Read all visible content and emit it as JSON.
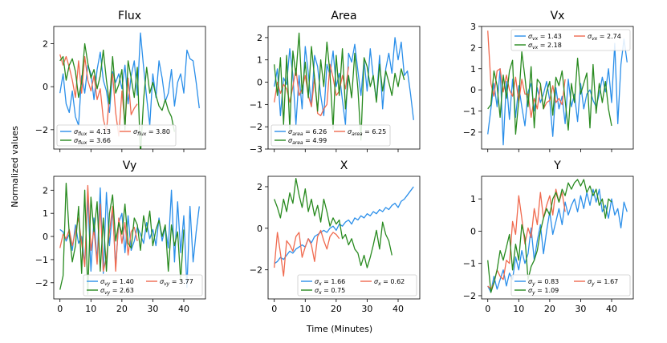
{
  "figure": {
    "x_label": "Time (Minutes)",
    "y_label": "Normalized values"
  },
  "colors": {
    "blue": "#2b8fea",
    "red": "#f06a4f",
    "green": "#288a1f"
  },
  "chart_data": [
    {
      "type": "line",
      "title": "Flux",
      "xlim": [
        -2,
        47
      ],
      "ylim": [
        -2.9,
        2.8
      ],
      "xticks": [
        0,
        10,
        20,
        30,
        40
      ],
      "xticklabels": [],
      "yticks": [
        -2,
        0,
        2
      ],
      "yticklabels": [
        "−2",
        "0",
        "2"
      ],
      "legend_ncol": 2,
      "legend_loc": "lower-left",
      "series": [
        {
          "name": "σflux = 4.13",
          "sym": "flux",
          "val": "4.13",
          "color": "blue",
          "step": 1,
          "values": [
            -0.3,
            0.6,
            -0.8,
            -1.2,
            -0.2,
            -1.4,
            -1.8,
            0.5,
            -0.3,
            1.0,
            0.6,
            -0.6,
            0.8,
            1.6,
            0.3,
            -0.2,
            -1.2,
            0.7,
            0.2,
            0.6,
            -0.1,
            1.0,
            -0.8,
            0.5,
            1.2,
            -0.4,
            2.5,
            0.9,
            -0.5,
            -1.8,
            0.6,
            -0.5,
            1.2,
            0.4,
            -0.7,
            -0.3,
            0.8,
            -0.9,
            0.2,
            0.6,
            -0.3,
            1.7,
            1.3,
            1.2,
            0.2,
            -1.0
          ]
        },
        {
          "name": "σflux = 3.80",
          "sym": "flux",
          "val": "3.80",
          "color": "red",
          "step": 1,
          "values": [
            1.5,
            1.0,
            1.4,
            0.9,
            0.3,
            -0.5,
            1.2,
            -0.3,
            1.4,
            0.3,
            -0.2,
            0.5,
            -0.6,
            -0.1,
            -1.5,
            -2.1,
            -0.4,
            0.6,
            -1.2,
            -2.3,
            -0.2,
            -1.8,
            0.4,
            -1.3,
            -1.0,
            -0.8
          ]
        },
        {
          "name": "σflux = 3.66",
          "sym": "flux",
          "val": "3.66",
          "color": "green",
          "step": 1,
          "values": [
            1.2,
            1.4,
            0.3,
            1.0,
            1.3,
            0.7,
            -0.5,
            0.2,
            2.0,
            1.1,
            0.4,
            0.8,
            -0.1,
            0.5,
            1.7,
            0.3,
            -0.8,
            1.4,
            -0.3,
            0.1,
            0.8,
            -2.0,
            1.2,
            0.4,
            -0.5,
            0.9,
            -3.2,
            -0.6,
            0.9,
            -0.3,
            0.2,
            -0.4,
            -0.9,
            -1.1,
            -0.6,
            -1.1,
            -1.4,
            -2.1
          ]
        }
      ]
    },
    {
      "type": "line",
      "title": "Area",
      "xlim": [
        -2,
        47
      ],
      "ylim": [
        -3,
        2.5
      ],
      "xticks": [
        0,
        10,
        20,
        30,
        40
      ],
      "xticklabels": [],
      "yticks": [
        -3,
        -2,
        -1,
        0,
        1,
        2
      ],
      "yticklabels": [
        "−3",
        "−2",
        "−1",
        "0",
        "1",
        "2"
      ],
      "legend_ncol": 2,
      "legend_loc": "lower-left",
      "series": [
        {
          "name": "σarea = 6.26",
          "sym": "area",
          "val": "6.26",
          "color": "blue",
          "step": 1,
          "values": [
            -0.2,
            0.6,
            -1.5,
            0.2,
            -0.1,
            1.5,
            0.3,
            -1.9,
            0.3,
            -1.2,
            1.6,
            0.4,
            -1.1,
            1.2,
            0.7,
            -0.6,
            -1.5,
            0.8,
            0.3,
            1.4,
            -0.2,
            0.4,
            -0.8,
            -1.9,
            1.3,
            0.9,
            1.7,
            0.5,
            -0.6,
            1.0,
            -0.4,
            1.5,
            0.2,
            -0.8,
            1.2,
            -1.2,
            0.6,
            1.3,
            0.4,
            2.0,
            1.0,
            1.8,
            0.3,
            0.5,
            -0.5,
            -1.7
          ]
        },
        {
          "name": "σarea = 6.25",
          "sym": "area",
          "val": "6.25",
          "color": "red",
          "step": 1,
          "values": [
            -0.9,
            0.0,
            -0.5,
            -0.1,
            -0.3,
            -0.9,
            -0.2,
            0.6,
            -0.6,
            -0.3,
            0.3,
            -0.6,
            -1.1,
            0.2,
            -1.4,
            -1.5,
            -1.2,
            -1.0,
            0.8,
            0.2,
            -0.6,
            -0.4,
            0.3,
            -0.3,
            0.7
          ]
        },
        {
          "name": "σarea = 4.99",
          "sym": "area",
          "val": "4.99",
          "color": "green",
          "step": 1,
          "values": [
            0.8,
            -0.6,
            1.1,
            -1.9,
            1.2,
            -2.1,
            1.4,
            0.3,
            2.2,
            -0.5,
            0.9,
            -0.7,
            1.6,
            0.2,
            -1.3,
            1.0,
            -0.2,
            1.8,
            0.4,
            -2.1,
            1.2,
            -0.6,
            1.5,
            -1.2,
            0.3,
            -0.7,
            1.3,
            -0.3,
            -2.6,
            1.1,
            0.7,
            -0.2,
            0.3,
            -0.9,
            0.8,
            -0.4,
            0.5,
            0.0,
            -0.6,
            0.4,
            -0.2,
            0.6,
            0.1
          ]
        }
      ]
    },
    {
      "type": "line",
      "title": "Vx",
      "xlim": [
        -2,
        47
      ],
      "ylim": [
        -2.8,
        3.0
      ],
      "xticks": [
        0,
        10,
        20,
        30,
        40
      ],
      "xticklabels": [],
      "yticks": [
        -2,
        -1,
        0,
        1,
        2,
        3
      ],
      "yticklabels": [
        "−2",
        "−1",
        "0",
        "1",
        "2",
        "3"
      ],
      "legend_ncol": 2,
      "legend_loc": "upper-right",
      "series": [
        {
          "name": "σvx = 1.43",
          "sym": "vx",
          "val": "1.43",
          "color": "blue",
          "step": 1,
          "values": [
            -2.1,
            -0.9,
            0.3,
            -0.8,
            1.0,
            -2.6,
            0.4,
            -1.4,
            0.5,
            -1.3,
            0.2,
            -0.8,
            -1.7,
            -0.1,
            0.3,
            -1.0,
            0.1,
            -0.6,
            -0.2,
            0.4,
            -0.5,
            -2.2,
            0.1,
            -0.9,
            -0.3,
            -1.6,
            0.5,
            -0.8,
            -0.2,
            -1.5,
            0.3,
            -0.9,
            -0.2,
            0.0,
            -0.5,
            -0.8,
            -0.2,
            0.6,
            -0.1,
            1.0,
            -0.6,
            2.2,
            -1.6,
            1.2,
            2.4,
            1.3
          ]
        },
        {
          "name": "σvx = 2.74",
          "sym": "vx",
          "val": "2.74",
          "color": "red",
          "step": 1,
          "values": [
            2.8,
            0.3,
            -0.3,
            0.9,
            1.0,
            -0.1,
            0.7,
            0.0,
            -0.3,
            0.6,
            -0.6,
            0.5,
            -0.2,
            -0.2,
            -1.3,
            -0.4,
            -0.9,
            0.2,
            -0.9,
            -0.6,
            -0.5,
            0.2,
            -0.6,
            -0.4,
            -0.7,
            0.5
          ]
        },
        {
          "name": "σvx = 2.18",
          "sym": "vx",
          "val": "2.18",
          "color": "green",
          "step": 1,
          "values": [
            -0.9,
            -0.7,
            0.9,
            0.2,
            -1.3,
            0.7,
            -0.4,
            0.9,
            1.4,
            -2.1,
            -0.5,
            1.8,
            0.6,
            -0.8,
            1.1,
            -1.8,
            0.5,
            0.3,
            -0.9,
            -0.1,
            0.4,
            -1.2,
            0.6,
            0.2,
            0.9,
            -0.5,
            -1.9,
            0.3,
            -0.6,
            1.5,
            -0.2,
            0.3,
            0.8,
            -1.8,
            1.2,
            -1.1,
            0.3,
            -0.6,
            0.4,
            -0.9,
            -1.7
          ]
        }
      ]
    },
    {
      "type": "line",
      "title": "Vy",
      "xlim": [
        -2,
        47
      ],
      "ylim": [
        -2.7,
        2.6
      ],
      "xticks": [
        0,
        10,
        20,
        30,
        40
      ],
      "xticklabels": [
        "0",
        "10",
        "20",
        "30",
        "40"
      ],
      "yticks": [
        -2,
        -1,
        0,
        1,
        2
      ],
      "yticklabels": [
        "−2",
        "−1",
        "0",
        "1",
        "2"
      ],
      "legend_ncol": 2,
      "legend_loc": "lower-right",
      "series": [
        {
          "name": "σvy = 1.40",
          "sym": "vy",
          "val": "1.40",
          "color": "blue",
          "step": 1,
          "values": [
            0.3,
            0.2,
            -0.2,
            0.1,
            -0.6,
            0.5,
            -0.3,
            0.0,
            -1.2,
            1.7,
            -1.5,
            0.8,
            -1.1,
            2.1,
            -1.6,
            1.9,
            -0.4,
            1.2,
            -1.3,
            0.6,
            1.0,
            -0.7,
            0.9,
            -0.6,
            -0.2,
            0.4,
            0.1,
            -0.3,
            0.6,
            -0.1,
            0.3,
            -0.4,
            0.8,
            -0.2,
            0.4,
            -0.5,
            2.0,
            -1.1,
            1.5,
            -0.7,
            0.9,
            -2.2,
            1.3,
            -1.1,
            0.2,
            1.3
          ]
        },
        {
          "name": "σvy = 3.77",
          "sym": "vy",
          "val": "3.77",
          "color": "red",
          "step": 1,
          "values": [
            -0.5,
            0.1,
            -0.1,
            0.3,
            -0.4,
            0.2,
            0.8,
            -0.3,
            -1.3,
            2.2,
            -0.6,
            0.3,
            -1.2,
            1.4,
            -1.5,
            -0.9,
            0.2,
            1.3,
            -1.5,
            0.8,
            -0.3,
            0.6,
            -0.8,
            0.2,
            0.4,
            -0.2
          ]
        },
        {
          "name": "σvy = 2.63",
          "sym": "vy",
          "val": "2.63",
          "color": "green",
          "step": 1,
          "values": [
            -2.3,
            -1.7,
            2.3,
            0.1,
            -1.1,
            -0.4,
            1.3,
            -1.6,
            2.0,
            -2.5,
            1.7,
            0.2,
            1.5,
            -1.5,
            0.8,
            -1.5,
            1.0,
            1.8,
            -0.2,
            0.6,
            0.1,
            1.4,
            -0.3,
            -0.5,
            0.8,
            0.5,
            -0.6,
            0.9,
            0.2,
            1.1,
            -0.4,
            0.3,
            0.7,
            0.0,
            0.5,
            -1.5,
            0.5,
            -0.4,
            0.2,
            -1.9,
            0.3
          ]
        }
      ]
    },
    {
      "type": "line",
      "title": "X",
      "xlim": [
        -2,
        47
      ],
      "ylim": [
        -3.4,
        2.5
      ],
      "xticks": [
        0,
        10,
        20,
        30,
        40
      ],
      "xticklabels": [
        "0",
        "10",
        "20",
        "30",
        "40"
      ],
      "yticks": [
        -2,
        0,
        2
      ],
      "yticklabels": [
        "−2",
        "0",
        "2"
      ],
      "legend_ncol": 2,
      "legend_loc": "lower-right",
      "series": [
        {
          "name": "σx = 1.66",
          "sym": "x",
          "val": "1.66",
          "color": "blue",
          "step": 1,
          "values": [
            -1.7,
            -1.6,
            -1.4,
            -1.5,
            -1.3,
            -1.1,
            -1.2,
            -1.0,
            -0.9,
            -0.8,
            -0.9,
            -0.5,
            -0.7,
            -0.4,
            -0.3,
            -0.2,
            -0.1,
            -0.2,
            0.0,
            0.1,
            -0.1,
            0.2,
            0.1,
            0.3,
            0.4,
            0.2,
            0.5,
            0.4,
            0.6,
            0.5,
            0.7,
            0.6,
            0.8,
            0.7,
            0.9,
            0.8,
            1.0,
            0.9,
            1.1,
            1.2,
            1.0,
            1.3,
            1.4,
            1.6,
            1.8,
            2.0
          ]
        },
        {
          "name": "σx = 0.62",
          "sym": "x",
          "val": "0.62",
          "color": "red",
          "step": 1,
          "values": [
            -1.9,
            -0.2,
            -1.2,
            -2.3,
            -0.6,
            -0.8,
            -1.1,
            -0.4,
            -0.2,
            -1.4,
            -0.9,
            -0.5,
            -0.8,
            -1.6,
            -0.4,
            -0.1,
            -0.6,
            -1.0,
            -0.4,
            -0.2,
            -0.3,
            -0.5
          ]
        },
        {
          "name": "σx = 0.75",
          "sym": "x",
          "val": "0.75",
          "color": "green",
          "step": 1,
          "values": [
            1.4,
            1.0,
            0.5,
            1.4,
            0.8,
            1.7,
            1.2,
            2.4,
            1.6,
            1.0,
            1.9,
            0.8,
            1.4,
            0.6,
            1.1,
            0.3,
            1.4,
            0.8,
            0.1,
            0.5,
            0.2,
            0.4,
            -0.5,
            -0.3,
            -0.8,
            -0.5,
            -1.0,
            -1.2,
            -1.8,
            -1.3,
            -1.9,
            -1.4,
            -0.8,
            -0.1,
            -1.0,
            0.3,
            -0.3,
            -0.6,
            -1.3
          ]
        }
      ]
    },
    {
      "type": "line",
      "title": "Y",
      "xlim": [
        -2,
        47
      ],
      "ylim": [
        -2.1,
        1.7
      ],
      "xticks": [
        0,
        10,
        20,
        30,
        40
      ],
      "xticklabels": [
        "0",
        "10",
        "20",
        "30",
        "40"
      ],
      "yticks": [
        -2,
        -1,
        0,
        1
      ],
      "yticklabels": [
        "−2",
        "−1",
        "0",
        "1"
      ],
      "legend_ncol": 2,
      "legend_loc": "lower-right",
      "series": [
        {
          "name": "σy = 0.83",
          "sym": "y",
          "val": "0.83",
          "color": "blue",
          "step": 1,
          "values": [
            -1.7,
            -1.9,
            -1.4,
            -1.8,
            -1.5,
            -1.2,
            -1.7,
            -1.3,
            -1.5,
            -0.8,
            -1.2,
            -0.6,
            -1.0,
            -0.7,
            0.1,
            -0.9,
            -0.3,
            0.2,
            -0.7,
            0.0,
            0.6,
            -0.1,
            0.3,
            0.7,
            0.2,
            0.9,
            0.5,
            0.8,
            1.0,
            0.6,
            1.1,
            0.7,
            1.2,
            0.8,
            1.3,
            0.9,
            1.3,
            0.6,
            0.8,
            0.4,
            1.0,
            0.5,
            0.7,
            0.1,
            0.9,
            0.6
          ]
        },
        {
          "name": "σy = 1.67",
          "sym": "y",
          "val": "1.67",
          "color": "red",
          "step": 1,
          "values": [
            -1.7,
            -1.8,
            -1.6,
            -1.2,
            -1.4,
            -1.5,
            -0.9,
            -1.0,
            0.3,
            -0.1,
            1.1,
            0.4,
            -0.4,
            0.1,
            -0.2,
            0.7,
            0.2,
            1.2,
            0.4,
            0.8,
            1.1,
            0.5,
            1.3,
            0.9,
            1.2,
            0.6
          ]
        },
        {
          "name": "σy = 1.09",
          "sym": "y",
          "val": "1.09",
          "color": "green",
          "step": 1,
          "values": [
            -0.9,
            -1.9,
            -1.6,
            -1.2,
            -0.6,
            -0.9,
            -0.5,
            -0.1,
            -1.2,
            -0.4,
            -0.9,
            0.2,
            -0.2,
            -1.5,
            -1.1,
            -0.9,
            -0.6,
            0.0,
            0.4,
            0.7,
            0.5,
            1.0,
            1.2,
            0.9,
            1.3,
            1.1,
            1.5,
            1.3,
            1.5,
            1.6,
            1.4,
            1.6,
            1.2,
            1.4,
            1.1,
            1.3,
            0.8,
            1.0,
            0.4,
            1.0,
            0.9
          ]
        }
      ]
    }
  ]
}
